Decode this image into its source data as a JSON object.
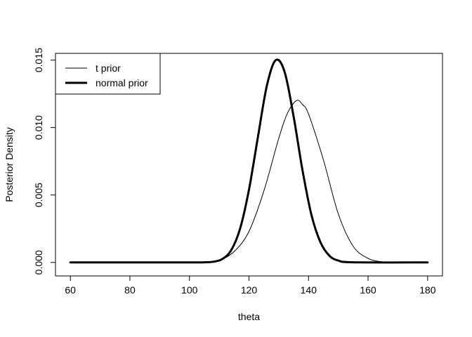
{
  "chart_data": {
    "type": "line",
    "title": "",
    "xlabel": "theta",
    "ylabel": "Posterior Density",
    "xlim": [
      55,
      185
    ],
    "ylim": [
      -0.001,
      0.0155
    ],
    "xticks": [
      60,
      80,
      100,
      120,
      140,
      160,
      180
    ],
    "xtick_labels": [
      "60",
      "80",
      "100",
      "120",
      "140",
      "160",
      "180"
    ],
    "yticks": [
      0.0,
      0.005,
      0.01,
      0.015
    ],
    "ytick_labels": [
      "0.000",
      "0.005",
      "0.010",
      "0.015"
    ],
    "grid": false,
    "legend_position": "top-left",
    "series": [
      {
        "name": "t prior",
        "line_width": "thin",
        "color": "#000000",
        "x": [
          60,
          100,
          105,
          110,
          115,
          120,
          125,
          130,
          133,
          136,
          138,
          140,
          145,
          150,
          155,
          160,
          165,
          170,
          180
        ],
        "y": [
          0.0,
          0.0,
          2e-05,
          0.00015,
          0.0008,
          0.0023,
          0.0053,
          0.0092,
          0.0111,
          0.012,
          0.0117,
          0.011,
          0.0076,
          0.0036,
          0.0012,
          0.0003,
          4e-05,
          0.0,
          0.0
        ]
      },
      {
        "name": "normal prior",
        "line_width": "thick",
        "color": "#000000",
        "x": [
          60,
          100,
          105,
          108,
          111,
          114,
          117,
          120,
          123,
          126,
          129,
          132,
          135,
          138,
          141,
          144,
          147,
          150,
          155,
          180
        ],
        "y": [
          0.0,
          0.0,
          1e-05,
          5e-05,
          0.00025,
          0.0009,
          0.0025,
          0.0054,
          0.0093,
          0.0131,
          0.015,
          0.0141,
          0.0108,
          0.0068,
          0.0035,
          0.0015,
          0.0005,
          0.00014,
          1e-05,
          0.0
        ]
      }
    ]
  }
}
